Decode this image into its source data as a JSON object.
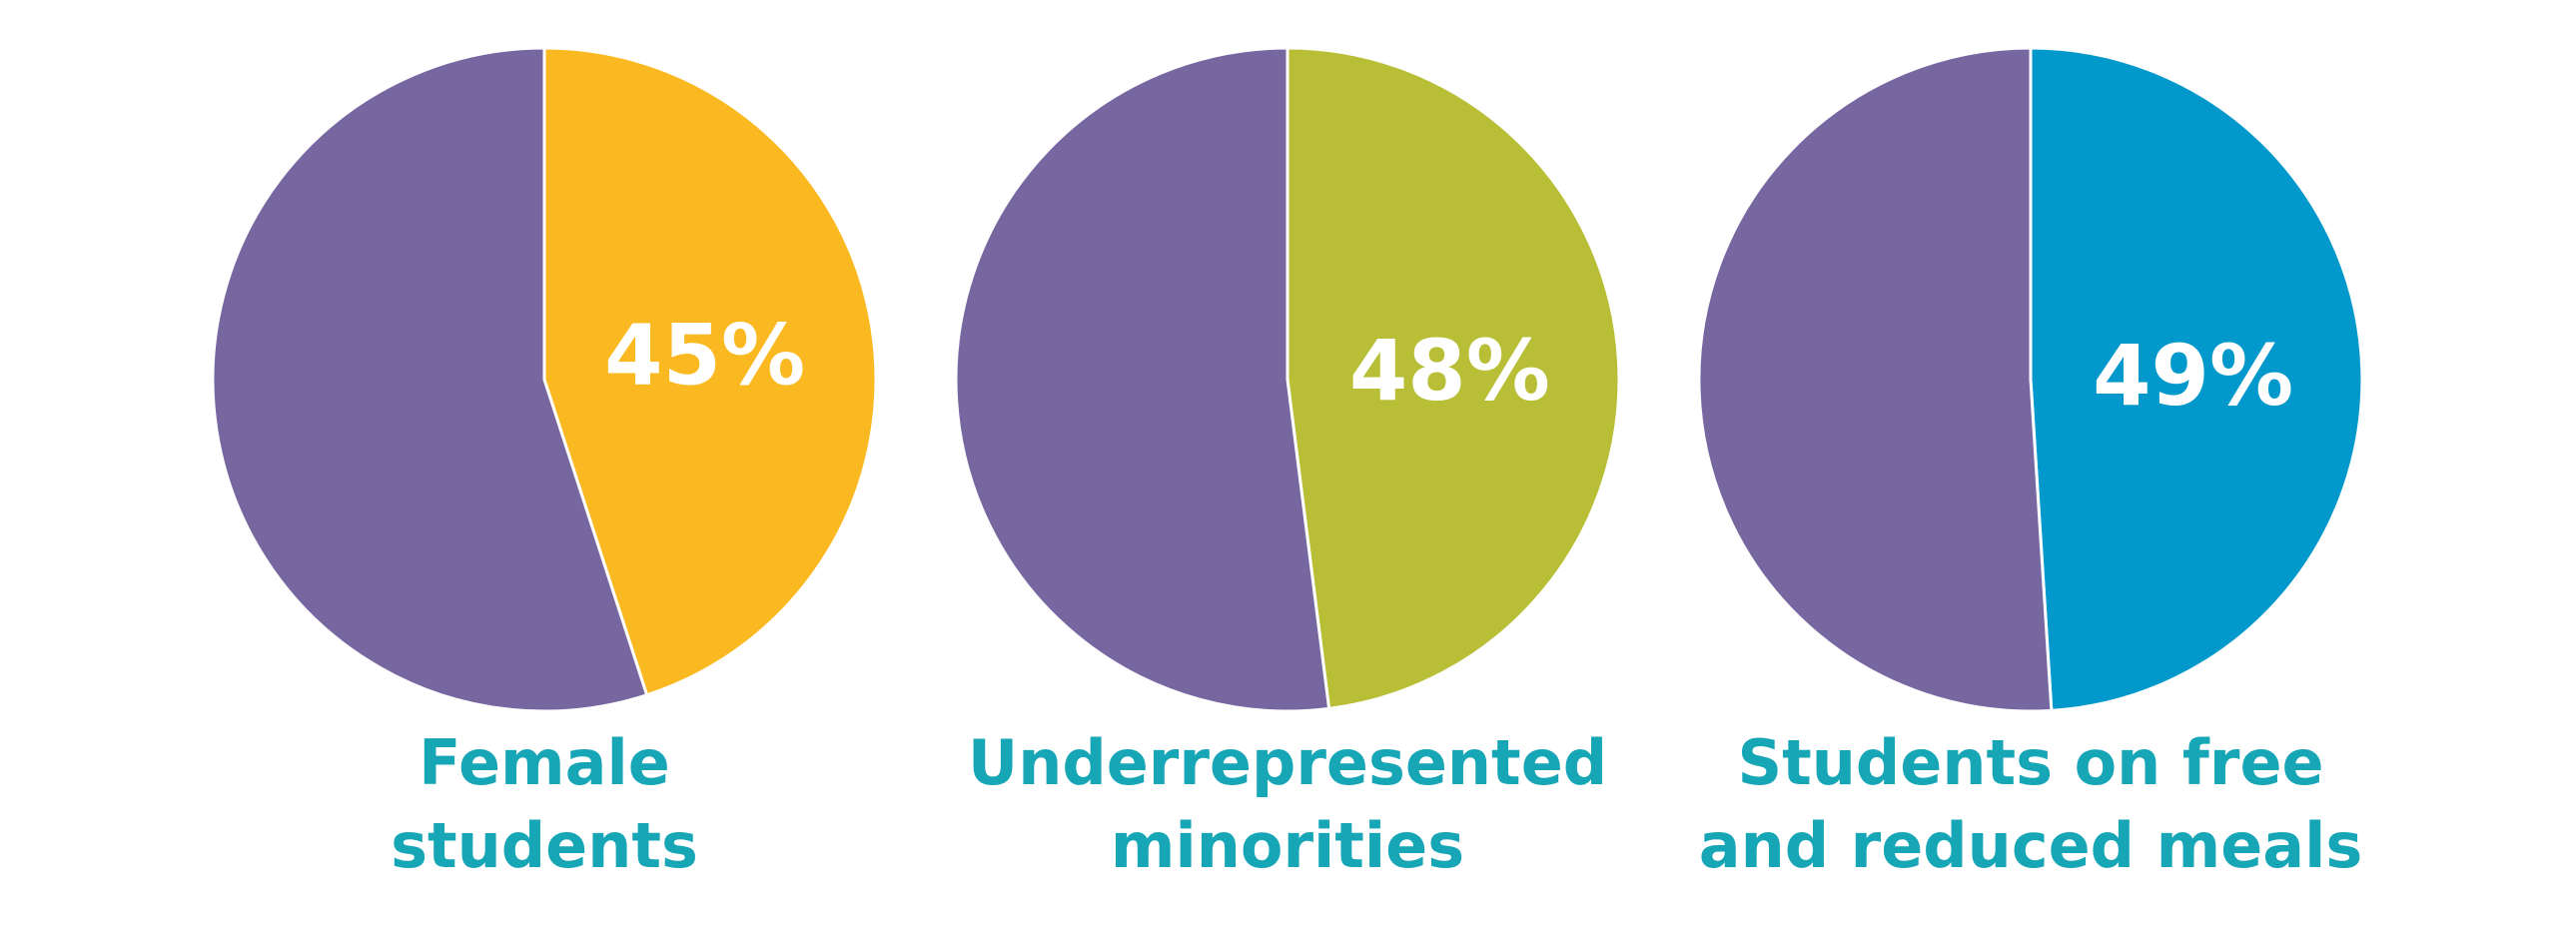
{
  "chart_data": [
    {
      "type": "pie",
      "title": "",
      "slices": [
        {
          "label": "45%",
          "value": 45,
          "color": "#FBB921"
        },
        {
          "label": "",
          "value": 55,
          "color": "#7767A1"
        }
      ],
      "caption": [
        "Female",
        "students"
      ]
    },
    {
      "type": "pie",
      "title": "",
      "slices": [
        {
          "label": "48%",
          "value": 48,
          "color": "#B8BF36"
        },
        {
          "label": "",
          "value": 52,
          "color": "#7767A1"
        }
      ],
      "caption": [
        "Underrepresented",
        "minorities"
      ]
    },
    {
      "type": "pie",
      "title": "",
      "slices": [
        {
          "label": "49%",
          "value": 49,
          "color": "#0198CC"
        },
        {
          "label": "",
          "value": 51,
          "color": "#7767A1"
        }
      ],
      "caption": [
        "Students on free",
        "and reduced meals"
      ]
    }
  ],
  "colors": {
    "caption": "#16A6B6",
    "divider": "#ffffff"
  }
}
